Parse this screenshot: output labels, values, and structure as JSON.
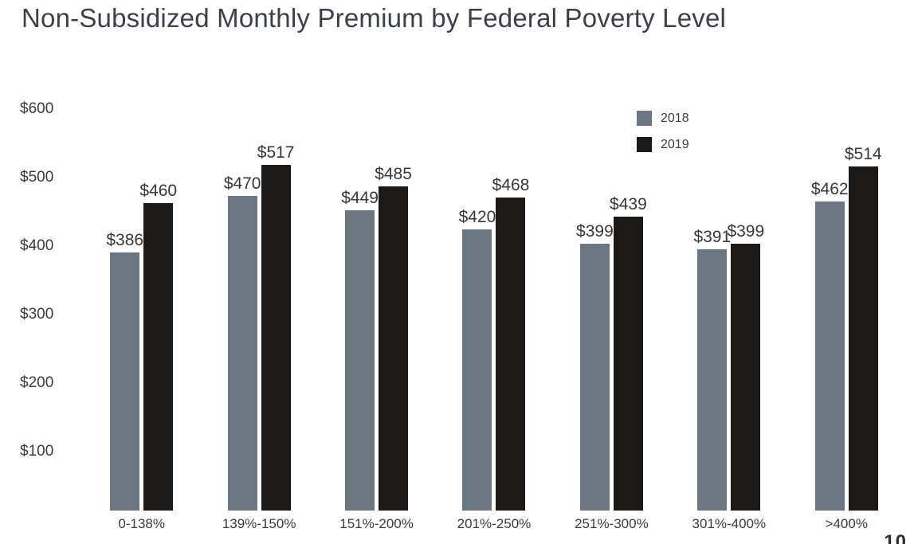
{
  "title": "Non-Subsidized Monthly Premium by Federal Poverty Level",
  "page_number": "10",
  "colors": {
    "background": "#ffffff",
    "title_text": "#3d4147",
    "axis_text": "#3b3b3b",
    "data_label_text": "#383838",
    "series_2018": "#6b7680",
    "series_2019": "#1b1a18"
  },
  "chart_data": {
    "type": "bar",
    "title": "Non-Subsidized Monthly Premium by Federal Poverty Level",
    "categories": [
      "0-138%",
      "139%-150%",
      "151%-200%",
      "201%-250%",
      "251%-300%",
      "301%-400%",
      ">400%"
    ],
    "series": [
      {
        "name": "2018",
        "color": "#6b7680",
        "values": [
          386,
          470,
          449,
          420,
          399,
          391,
          462
        ]
      },
      {
        "name": "2019",
        "color": "#1b1a18",
        "values": [
          460,
          517,
          485,
          468,
          439,
          399,
          514
        ]
      }
    ],
    "value_prefix": "$",
    "data_labels": true,
    "y_ticks": [
      {
        "value": 600,
        "label": "$600"
      },
      {
        "value": 500,
        "label": "$500"
      },
      {
        "value": 400,
        "label": "$400"
      },
      {
        "value": 300,
        "label": "$300"
      },
      {
        "value": 200,
        "label": "$200"
      },
      {
        "value": 100,
        "label": "$100"
      }
    ],
    "ylim": [
      0,
      600
    ],
    "grid": false,
    "axis_lines": false,
    "legend_position": "top-right"
  }
}
